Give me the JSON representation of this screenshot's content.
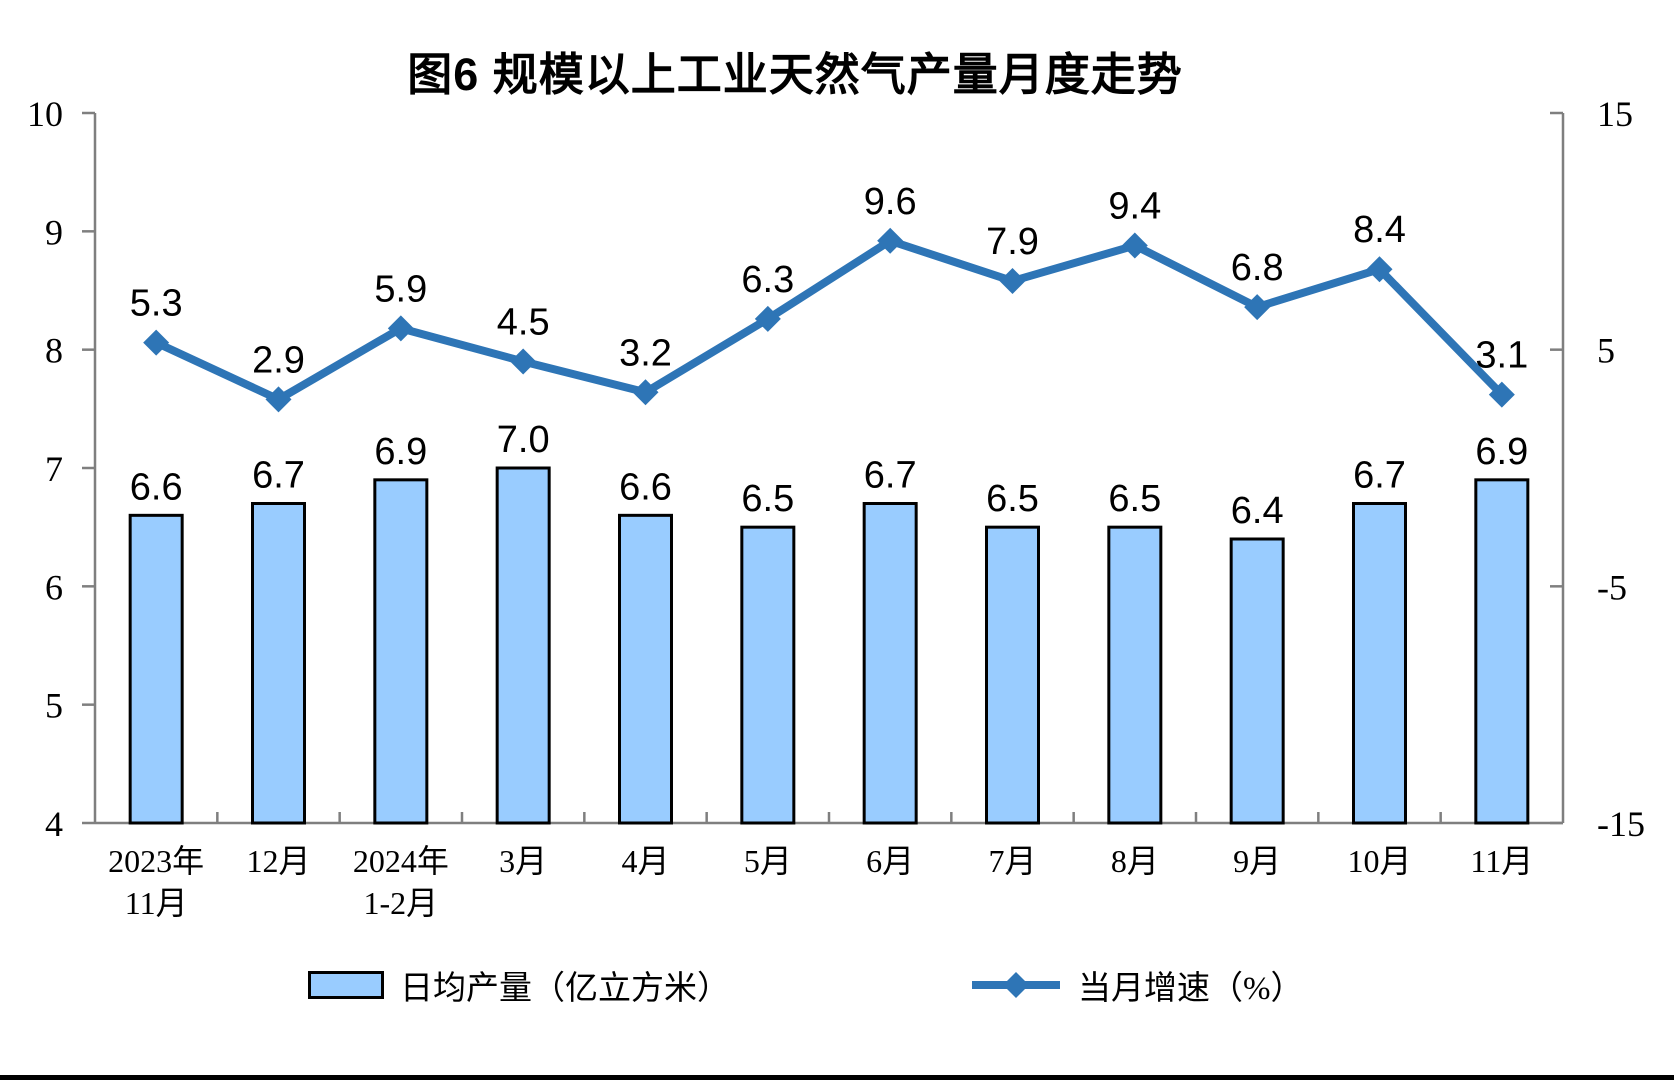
{
  "title": "图6 规模以上工业天然气产量月度走势",
  "legend": {
    "bar_label": "日均产量（亿立方米）",
    "line_label": "当月增速（%）"
  },
  "colors": {
    "bar_fill": "#99CCFF",
    "bar_border": "#000000",
    "line": "#2E75B6",
    "axis": "#7F7F7F",
    "text": "#000000"
  },
  "chart_data": {
    "type": "combo-bar-line",
    "title": "图6 规模以上工业天然气产量月度走势",
    "categories": [
      "2023年\n11月",
      "12月",
      "2024年\n1-2月",
      "3月",
      "4月",
      "5月",
      "6月",
      "7月",
      "8月",
      "9月",
      "10月",
      "11月"
    ],
    "series": [
      {
        "name": "日均产量（亿立方米）",
        "type": "bar",
        "axis": "left",
        "color": "#99CCFF",
        "values": [
          6.6,
          6.7,
          6.9,
          7.0,
          6.6,
          6.5,
          6.7,
          6.5,
          6.5,
          6.4,
          6.7,
          6.9
        ]
      },
      {
        "name": "当月增速（%）",
        "type": "line",
        "axis": "right",
        "color": "#2E75B6",
        "values": [
          5.3,
          2.9,
          5.9,
          4.5,
          3.2,
          6.3,
          9.6,
          7.9,
          9.4,
          6.8,
          8.4,
          3.1
        ]
      }
    ],
    "left_axis": {
      "min": 4,
      "max": 10,
      "tick_interval": 1,
      "ticks": [
        10,
        9,
        8,
        7,
        6,
        5,
        4
      ]
    },
    "right_axis": {
      "min": -15,
      "max": 15,
      "tick_interval": 10,
      "ticks": [
        15,
        5,
        -5,
        -15
      ]
    },
    "grid": false,
    "data_labels": true,
    "legend_position": "bottom"
  }
}
